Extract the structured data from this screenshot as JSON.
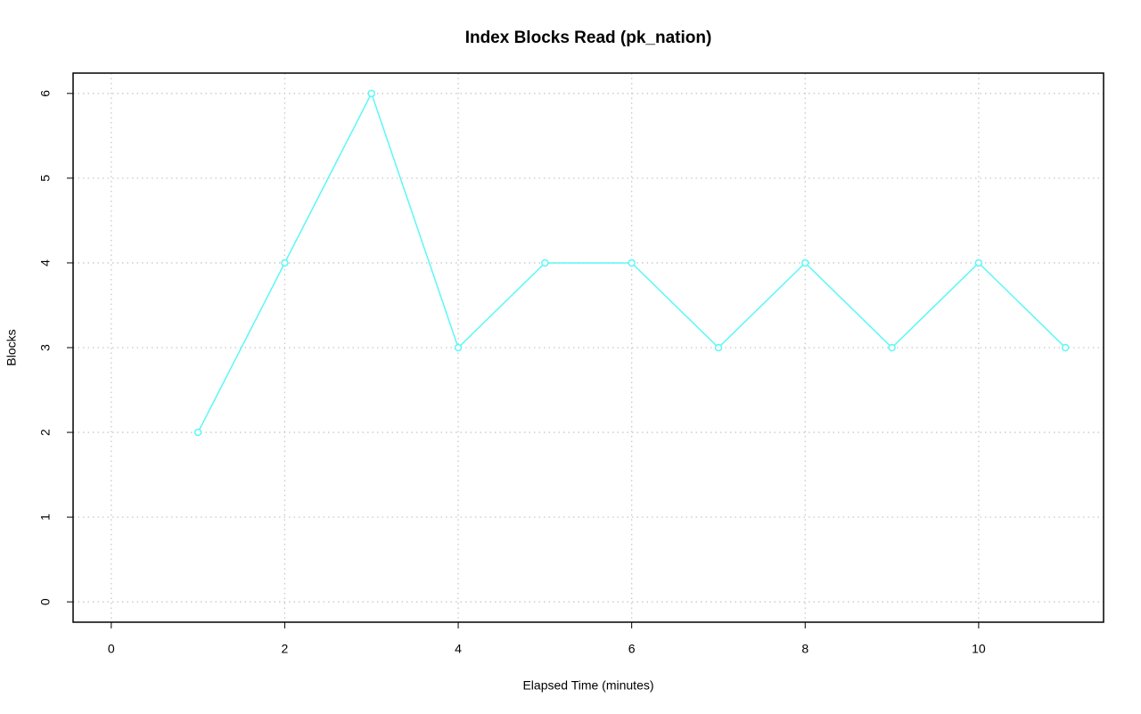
{
  "chart_data": {
    "type": "line",
    "title": "Index Blocks Read (pk_nation)",
    "x_label": "Elapsed Time (minutes)",
    "y_label": "Blocks",
    "x": [
      1,
      2,
      3,
      4,
      5,
      6,
      7,
      8,
      9,
      10,
      11
    ],
    "series": [
      {
        "name": "pk_nation",
        "color": "#5cf7f7",
        "values": [
          2,
          4,
          6,
          3,
          4,
          4,
          3,
          4,
          3,
          4,
          3
        ]
      }
    ],
    "xlim": [
      -0.44,
      11.44
    ],
    "ylim": [
      -0.24,
      6.24
    ],
    "xticks": [
      0,
      2,
      4,
      6,
      8,
      10
    ],
    "yticks": [
      0,
      1,
      2,
      3,
      4,
      5,
      6
    ],
    "grid": true
  }
}
